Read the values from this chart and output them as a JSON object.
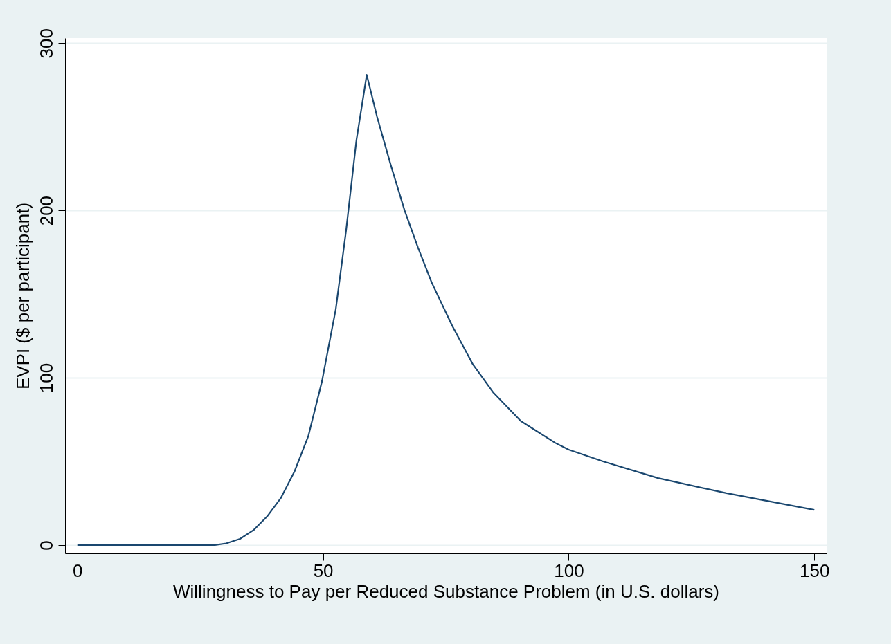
{
  "chart_data": {
    "type": "line",
    "xlabel": "Willingness to Pay per Reduced Substance Problem (in U.S. dollars)",
    "ylabel": "EVPI ($ per participant)",
    "x": [
      0,
      28,
      30.3,
      33.1,
      35.9,
      38.6,
      41.4,
      44.2,
      47,
      49.8,
      52.6,
      54.7,
      56.8,
      58.9,
      61,
      63.8,
      66.6,
      69.3,
      72.1,
      76.3,
      80.5,
      84.7,
      90.3,
      97.3,
      100,
      107,
      118.2,
      132.1,
      150
    ],
    "series": [
      {
        "color": "#1a476f",
        "values": [
          0,
          0,
          1,
          3.7,
          9,
          17,
          28,
          44,
          65,
          98,
          141,
          188,
          242,
          281,
          256,
          227,
          200,
          178,
          157,
          131,
          108,
          91,
          74,
          61,
          57,
          50,
          40,
          31,
          21
        ]
      }
    ],
    "xlim": [
      -2.5,
      152.5
    ],
    "ylim": [
      -5,
      303
    ],
    "xticks": [
      0,
      50,
      100,
      150
    ],
    "yticks": [
      0,
      100,
      200,
      300
    ],
    "grid": "y",
    "legend": false,
    "marker": "none",
    "line_style": "solid"
  }
}
